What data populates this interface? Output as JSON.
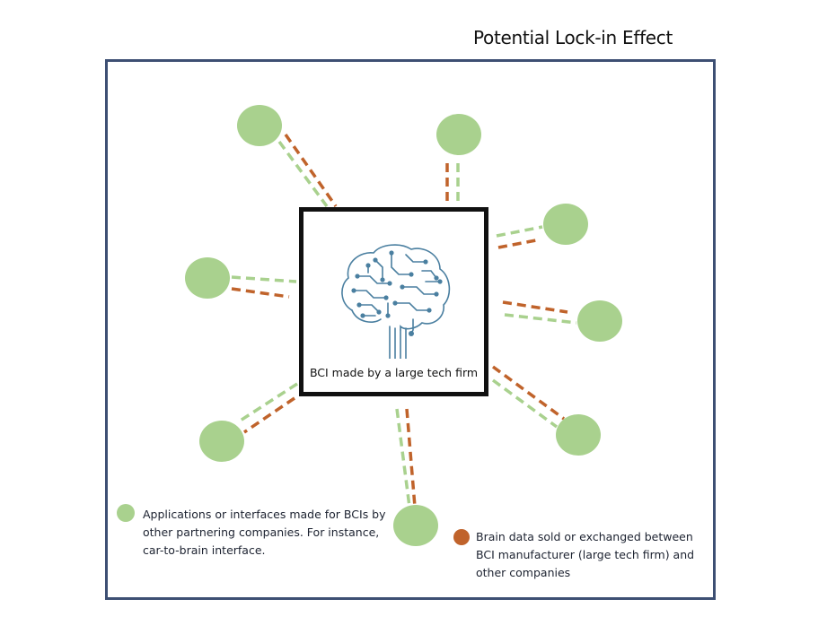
{
  "title": "Potential Lock-in Effect",
  "center": {
    "label": "BCI made by a large tech firm",
    "icon": "circuit-brain-icon"
  },
  "legend": {
    "applications": "Applications or interfaces made for BCIs by other partnering companies. For instance, car-to-brain interface.",
    "brain_data": "Brain data sold or exchanged between BCI manufacturer (large tech firm) and other companies"
  },
  "colors": {
    "frame": "#3d4f73",
    "node": "#a9d18e",
    "green_link": "#a9d18e",
    "brown_link": "#c0632b",
    "brain": "#4a7fa0"
  },
  "nodes": [
    "application-node-top-left",
    "application-node-top",
    "application-node-upper-right",
    "application-node-right",
    "application-node-lower-right",
    "application-node-bottom",
    "application-node-lower-left",
    "application-node-left"
  ]
}
